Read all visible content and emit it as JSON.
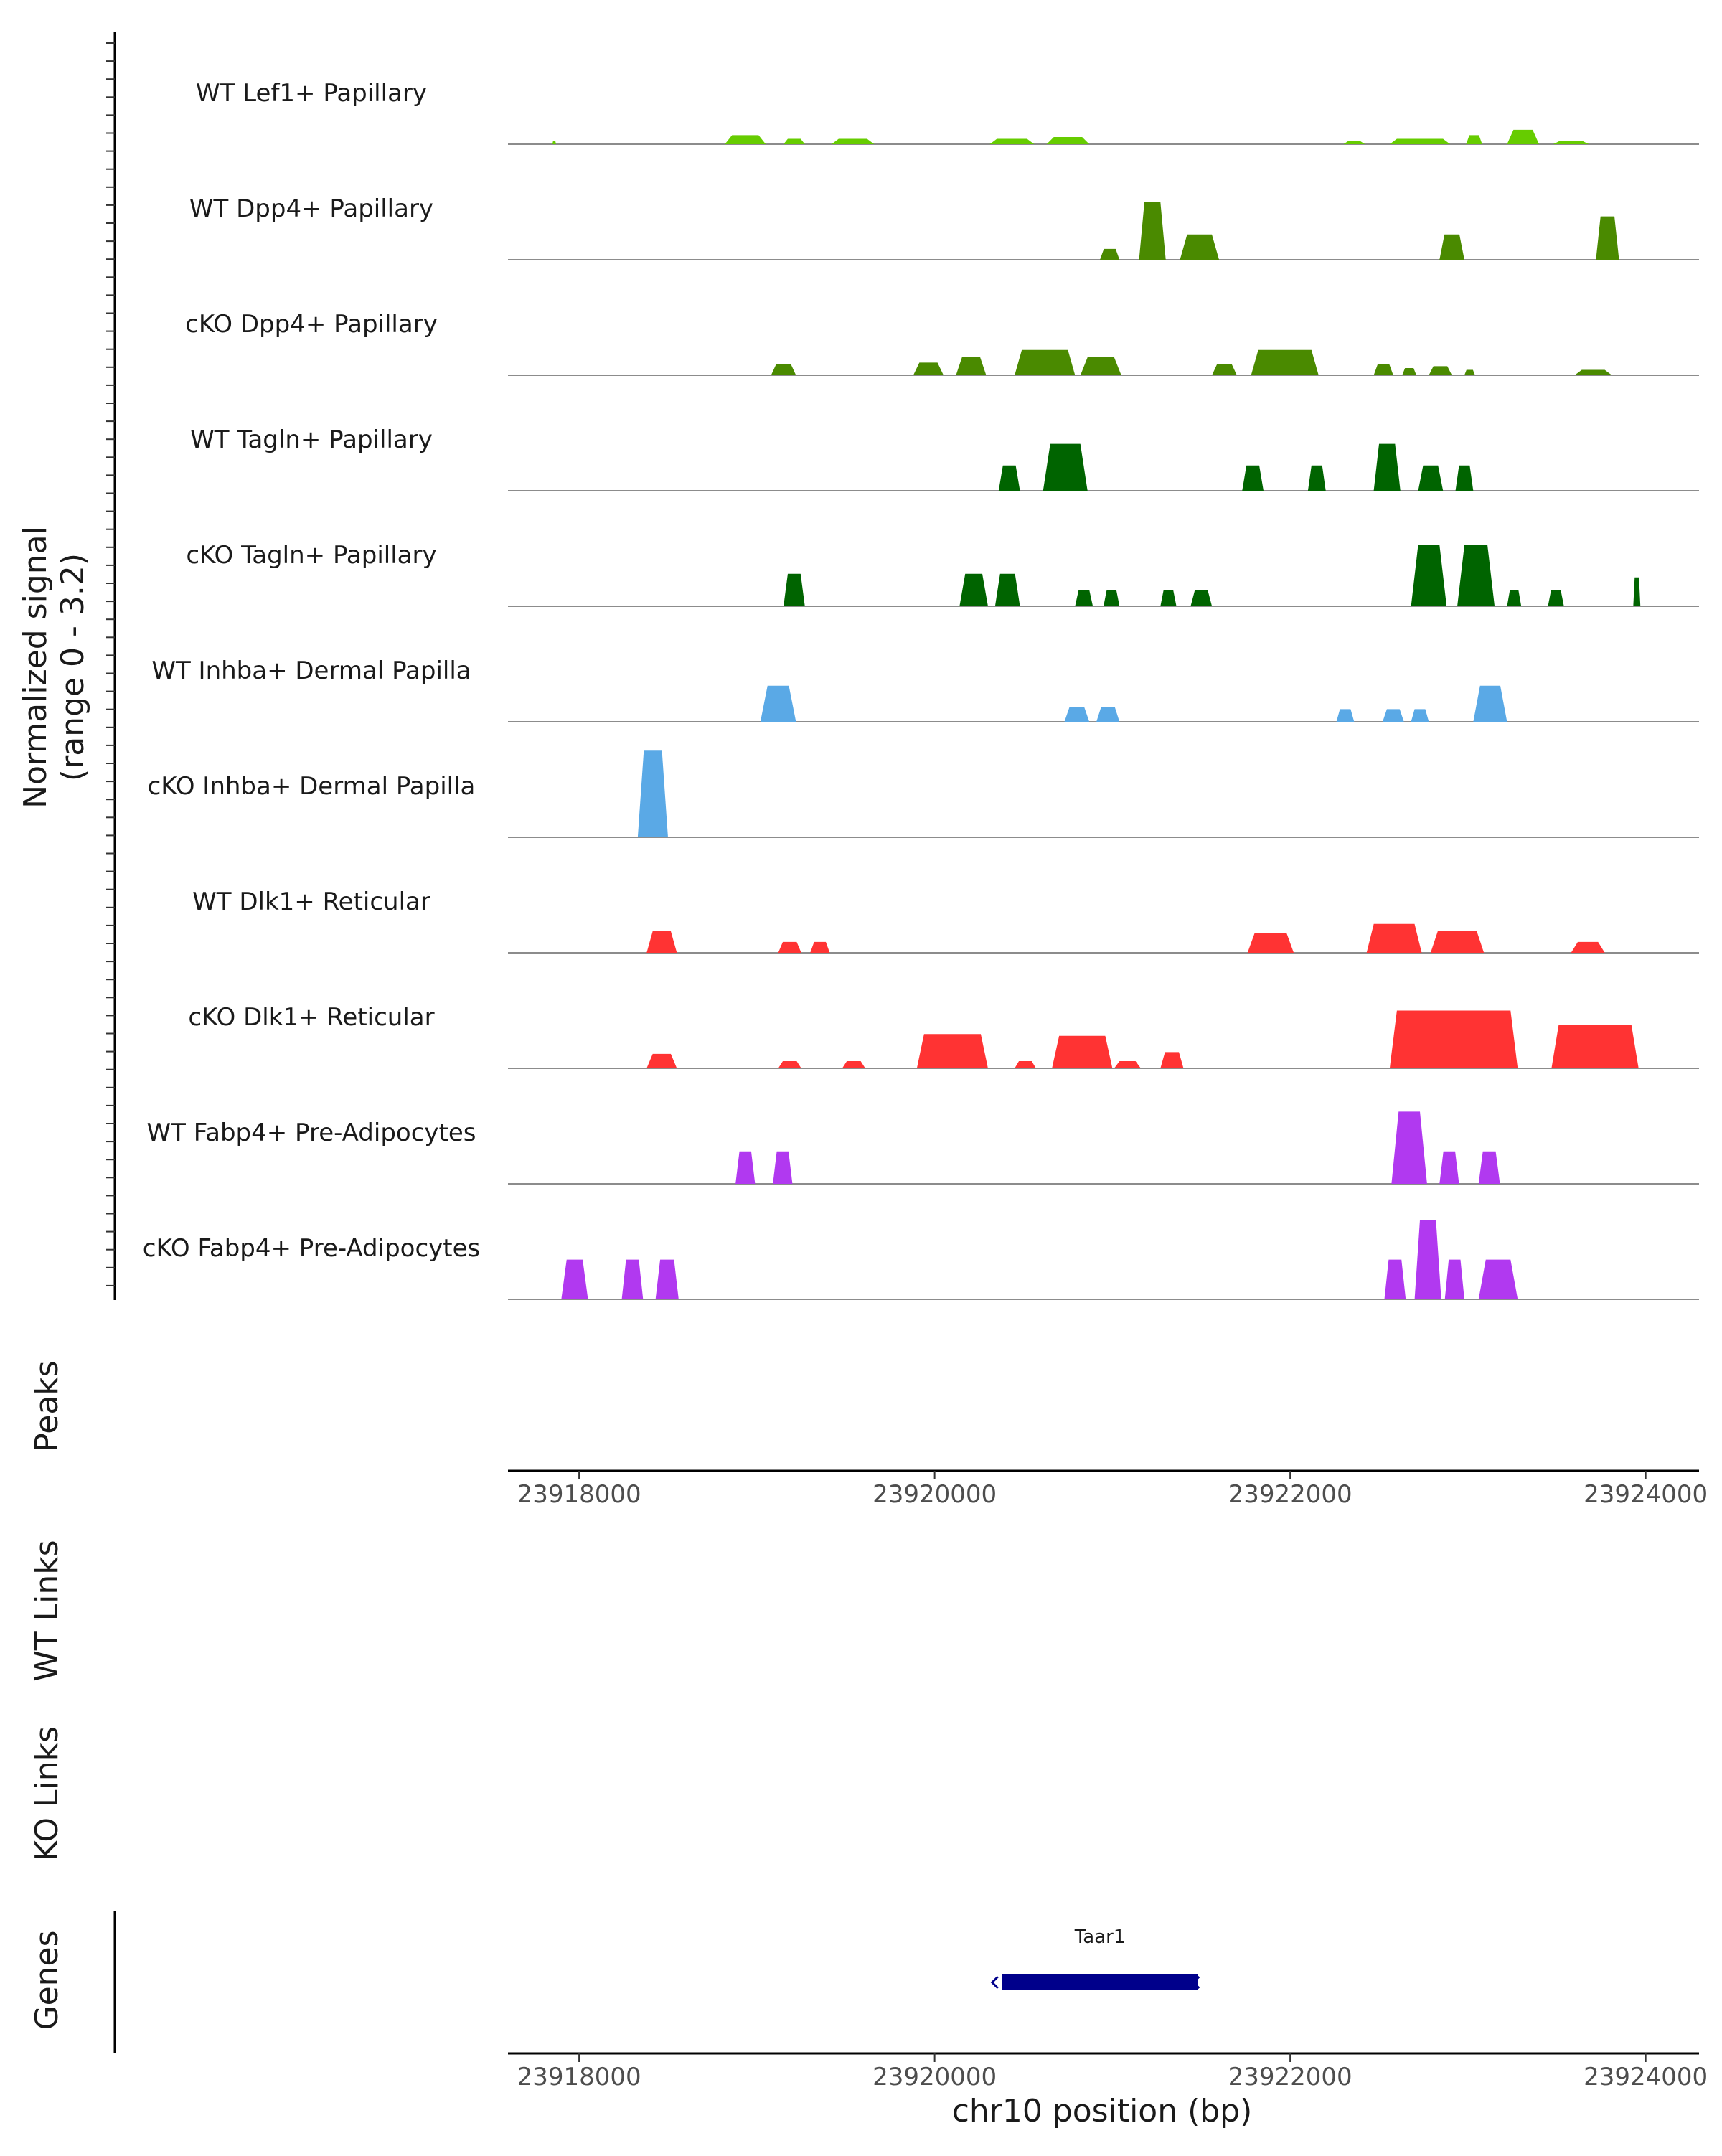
{
  "chart_data": {
    "type": "area",
    "description_type": "genome coverage track plot",
    "ylabel_line1": "Normalized signal",
    "ylabel_line2": "(range 0 - 3.2)",
    "ylim": [
      0,
      3.2
    ],
    "xlim": [
      23917600,
      23924300
    ],
    "tracks": [
      {
        "name": "WT Lef1+ Papillary",
        "color": "#66cc00",
        "peaks": [
          [
            23917850,
            23917870,
            0.1
          ],
          [
            23918820,
            23919050,
            0.25
          ],
          [
            23919150,
            23919270,
            0.15
          ],
          [
            23919420,
            23919660,
            0.15
          ],
          [
            23920310,
            23920560,
            0.15
          ],
          [
            23920630,
            23920870,
            0.2
          ],
          [
            23922300,
            23922420,
            0.08
          ],
          [
            23922560,
            23922900,
            0.15
          ],
          [
            23922990,
            23923080,
            0.25
          ],
          [
            23923220,
            23923400,
            0.4
          ],
          [
            23923480,
            23923680,
            0.1
          ]
        ]
      },
      {
        "name": "WT Dpp4+ Papillary",
        "color": "#4a8a00",
        "peaks": [
          [
            23920930,
            23921040,
            0.3
          ],
          [
            23921150,
            23921300,
            1.6
          ],
          [
            23921380,
            23921600,
            0.7
          ],
          [
            23922840,
            23922980,
            0.7
          ],
          [
            23923720,
            23923850,
            1.2
          ]
        ]
      },
      {
        "name": "cKO Dpp4+ Papillary",
        "color": "#4a8a00",
        "peaks": [
          [
            23919080,
            23919220,
            0.3
          ],
          [
            23919880,
            23920050,
            0.35
          ],
          [
            23920120,
            23920290,
            0.5
          ],
          [
            23920450,
            23920790,
            0.7
          ],
          [
            23920820,
            23921050,
            0.5
          ],
          [
            23921560,
            23921700,
            0.3
          ],
          [
            23921780,
            23922160,
            0.7
          ],
          [
            23922470,
            23922580,
            0.3
          ],
          [
            23922630,
            23922710,
            0.2
          ],
          [
            23922780,
            23922910,
            0.25
          ],
          [
            23922980,
            23923040,
            0.15
          ],
          [
            23923600,
            23923810,
            0.15
          ]
        ]
      },
      {
        "name": "WT Tagln+ Papillary",
        "color": "#006400",
        "peaks": [
          [
            23920360,
            23920480,
            0.7
          ],
          [
            23920610,
            23920860,
            1.3
          ],
          [
            23921730,
            23921850,
            0.7
          ],
          [
            23922100,
            23922200,
            0.7
          ],
          [
            23922470,
            23922620,
            1.3
          ],
          [
            23922720,
            23922860,
            0.7
          ],
          [
            23922930,
            23923030,
            0.7
          ]
        ]
      },
      {
        "name": "cKO Tagln+ Papillary",
        "color": "#006400",
        "peaks": [
          [
            23919150,
            23919270,
            0.9
          ],
          [
            23920140,
            23920300,
            0.9
          ],
          [
            23920340,
            23920480,
            0.9
          ],
          [
            23920790,
            23920890,
            0.45
          ],
          [
            23920950,
            23921040,
            0.45
          ],
          [
            23921270,
            23921360,
            0.45
          ],
          [
            23921440,
            23921560,
            0.45
          ],
          [
            23922680,
            23922880,
            1.7
          ],
          [
            23922940,
            23923150,
            1.7
          ],
          [
            23923220,
            23923300,
            0.45
          ],
          [
            23923450,
            23923540,
            0.45
          ],
          [
            23923930,
            23923970,
            0.8
          ]
        ]
      },
      {
        "name": "WT Inhba+ Dermal Papilla",
        "color": "#5aa9e6",
        "peaks": [
          [
            23919020,
            23919220,
            1.0
          ],
          [
            23920730,
            23920870,
            0.4
          ],
          [
            23920910,
            23921040,
            0.4
          ],
          [
            23922260,
            23922360,
            0.35
          ],
          [
            23922520,
            23922640,
            0.35
          ],
          [
            23922680,
            23922780,
            0.35
          ],
          [
            23923030,
            23923220,
            1.0
          ]
        ]
      },
      {
        "name": "cKO Inhba+ Dermal Papilla",
        "color": "#5aa9e6",
        "peaks": [
          [
            23918330,
            23918500,
            2.4
          ]
        ]
      },
      {
        "name": "WT Dlk1+ Reticular",
        "color": "#ff3333",
        "peaks": [
          [
            23918380,
            23918550,
            0.6
          ],
          [
            23919120,
            23919250,
            0.3
          ],
          [
            23919300,
            23919410,
            0.3
          ],
          [
            23921760,
            23922020,
            0.55
          ],
          [
            23922430,
            23922740,
            0.8
          ],
          [
            23922790,
            23923090,
            0.6
          ],
          [
            23923580,
            23923770,
            0.3
          ]
        ]
      },
      {
        "name": "cKO Dlk1+ Reticular",
        "color": "#ff3333",
        "peaks": [
          [
            23918380,
            23918550,
            0.4
          ],
          [
            23919120,
            23919250,
            0.2
          ],
          [
            23919480,
            23919610,
            0.2
          ],
          [
            23919900,
            23920300,
            0.95
          ],
          [
            23920450,
            23920570,
            0.2
          ],
          [
            23920660,
            23921000,
            0.9
          ],
          [
            23921010,
            23921160,
            0.2
          ],
          [
            23921270,
            23921400,
            0.45
          ],
          [
            23922560,
            23923280,
            1.6
          ],
          [
            23923470,
            23923960,
            1.2
          ]
        ]
      },
      {
        "name": "WT Fabp4+ Pre-Adipocytes",
        "color": "#b139f0",
        "peaks": [
          [
            23918880,
            23918990,
            0.9
          ],
          [
            23919090,
            23919200,
            0.9
          ],
          [
            23922570,
            23922770,
            2.0
          ],
          [
            23922840,
            23922950,
            0.9
          ],
          [
            23923060,
            23923180,
            0.9
          ]
        ]
      },
      {
        "name": "cKO Fabp4+ Pre-Adipocytes",
        "color": "#b139f0",
        "peaks": [
          [
            23917900,
            23918050,
            1.1
          ],
          [
            23918240,
            23918360,
            1.1
          ],
          [
            23918430,
            23918560,
            1.1
          ],
          [
            23922530,
            23922650,
            1.1
          ],
          [
            23922700,
            23922850,
            2.2
          ],
          [
            23922870,
            23922980,
            1.1
          ],
          [
            23923060,
            23923280,
            1.1
          ]
        ]
      }
    ],
    "x_ticks": [
      23918000,
      23920000,
      23922000,
      23924000
    ],
    "x_tick_labels": [
      "23918000",
      "23920000",
      "23922000",
      "23924000"
    ],
    "xlabel": "chr10 position (bp)",
    "panels": {
      "peaks": "Peaks",
      "wt_links": "WT Links",
      "ko_links": "KO Links",
      "genes": "Genes"
    },
    "genes": [
      {
        "name": "Taar1",
        "start": 23920380,
        "end": 23921480,
        "strand": "-",
        "color": "#00008b"
      }
    ]
  }
}
